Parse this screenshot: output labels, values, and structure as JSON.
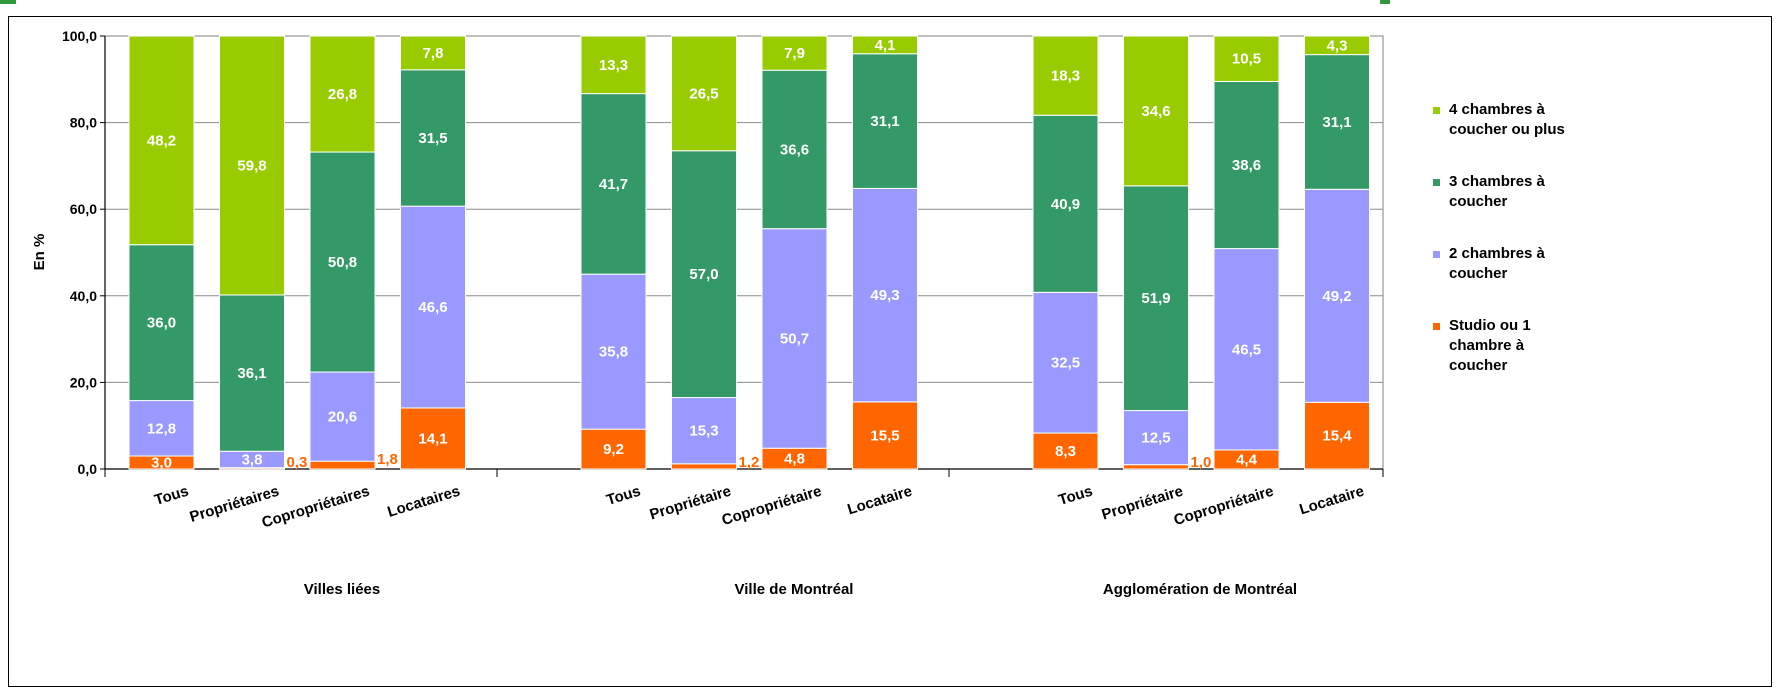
{
  "chart_data": {
    "type": "bar",
    "stacked": true,
    "ylabel": "En %",
    "ylim": [
      0,
      100
    ],
    "y_ticks": [
      "0,0",
      "20,0",
      "40,0",
      "60,0",
      "80,0",
      "100,0"
    ],
    "grid": true,
    "legend_position": "right",
    "groups": [
      {
        "label": "Villes liées",
        "categories": [
          "Tous",
          "Propriétaires",
          "Copropriétaires",
          "Locataires"
        ]
      },
      {
        "label": "Ville de Montréal",
        "categories": [
          "Tous",
          "Propriétaire",
          "Copropriétaire",
          "Locataire"
        ]
      },
      {
        "label": "Agglomération de Montréal",
        "categories": [
          "Tous",
          "Propriétaire",
          "Copropriétaire",
          "Locataire"
        ]
      }
    ],
    "series": [
      {
        "name": "Studio ou 1 chambre à coucher",
        "color": "#ff6600",
        "values": [
          3.0,
          0.3,
          1.8,
          14.1,
          9.2,
          1.2,
          4.8,
          15.5,
          8.3,
          1.0,
          4.4,
          15.4
        ],
        "labels": [
          "3,0",
          "0,3",
          "1,8",
          "14,1",
          "9,2",
          "1,2",
          "4,8",
          "15,5",
          "8,3",
          "1,0",
          "4,4",
          "15,4"
        ]
      },
      {
        "name": "2 chambres à coucher",
        "color": "#9999ff",
        "values": [
          12.8,
          3.8,
          20.6,
          46.6,
          35.8,
          15.3,
          50.7,
          49.3,
          32.5,
          12.5,
          46.5,
          49.2
        ],
        "labels": [
          "12,8",
          "3,8",
          "20,6",
          "46,6",
          "35,8",
          "15,3",
          "50,7",
          "49,3",
          "32,5",
          "12,5",
          "46,5",
          "49,2"
        ]
      },
      {
        "name": "3 chambres à coucher",
        "color": "#339966",
        "values": [
          36.0,
          36.1,
          50.8,
          31.5,
          41.7,
          57.0,
          36.6,
          31.1,
          40.9,
          51.9,
          38.6,
          31.1
        ],
        "labels": [
          "36,0",
          "36,1",
          "50,8",
          "31,5",
          "41,7",
          "57,0",
          "36,6",
          "31,1",
          "40,9",
          "51,9",
          "38,6",
          "31,1"
        ]
      },
      {
        "name": "4 chambres à coucher ou plus",
        "color": "#99cc00",
        "values": [
          48.2,
          59.8,
          26.8,
          7.8,
          13.3,
          26.5,
          7.9,
          4.1,
          18.3,
          34.6,
          10.5,
          4.3
        ],
        "labels": [
          "48,2",
          "59,8",
          "26,8",
          "7,8",
          "13,3",
          "26,5",
          "7,9",
          "4,1",
          "18,3",
          "34,6",
          "10,5",
          "4,3"
        ]
      }
    ],
    "legend": [
      {
        "lines": [
          "4 chambres à",
          "coucher ou plus"
        ],
        "color": "#99cc00"
      },
      {
        "lines": [
          "3 chambres à",
          "coucher"
        ],
        "color": "#339966"
      },
      {
        "lines": [
          "2 chambres à",
          "coucher"
        ],
        "color": "#9999ff"
      },
      {
        "lines": [
          "Studio ou 1",
          "chambre à",
          "coucher"
        ],
        "color": "#ff6600"
      }
    ]
  }
}
